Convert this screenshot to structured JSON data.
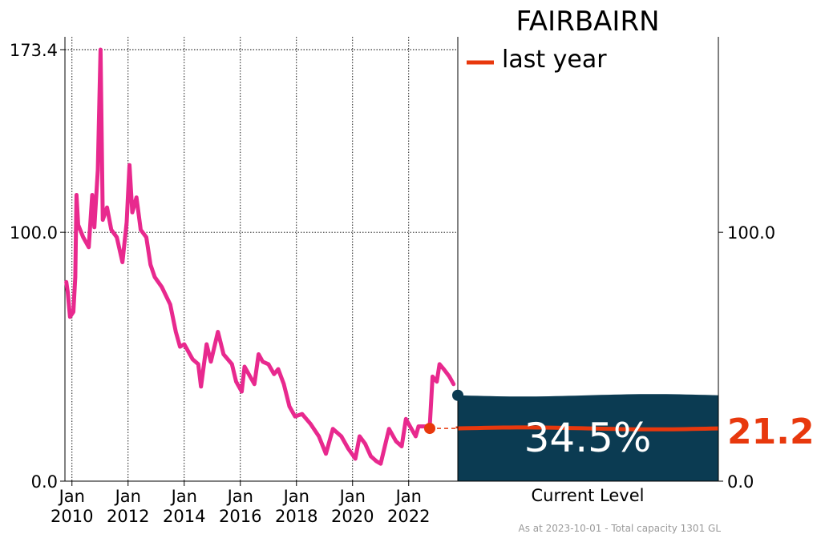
{
  "title": "FAIRBAIRN",
  "legend": {
    "label": "last year"
  },
  "current_panel": {
    "label": "Current Level",
    "percent_text": "34.5%"
  },
  "last_year_value_text": "21.2",
  "footer": "As at 2023-10-01 - Total capacity 1301 GL",
  "colors": {
    "series": "#e8298e",
    "last_year": "#e8380d",
    "fill": "#0b3b52",
    "dot": "#0b3b52"
  },
  "chart_data": {
    "type": "line",
    "title": "FAIRBAIRN",
    "xlabel": "",
    "ylabel": "",
    "ylim": [
      0,
      173.4
    ],
    "yticks_left": [
      "0.0",
      "100.0",
      "173.4"
    ],
    "yticks_right": [
      "0.0",
      "100.0"
    ],
    "xlim": [
      2009.75,
      2023.75
    ],
    "xticks": [
      {
        "x": 2010,
        "label1": "Jan",
        "label2": "2010"
      },
      {
        "x": 2012,
        "label1": "Jan",
        "label2": "2012"
      },
      {
        "x": 2014,
        "label1": "Jan",
        "label2": "2014"
      },
      {
        "x": 2016,
        "label1": "Jan",
        "label2": "2016"
      },
      {
        "x": 2018,
        "label1": "Jan",
        "label2": "2018"
      },
      {
        "x": 2020,
        "label1": "Jan",
        "label2": "2020"
      },
      {
        "x": 2022,
        "label1": "Jan",
        "label2": "2022"
      }
    ],
    "grid": true,
    "series": [
      {
        "values": [
          [
            2009.8,
            80
          ],
          [
            2009.85,
            76
          ],
          [
            2009.93,
            66
          ],
          [
            2010.05,
            68
          ],
          [
            2010.12,
            82
          ],
          [
            2010.16,
            115
          ],
          [
            2010.22,
            103
          ],
          [
            2010.4,
            98
          ],
          [
            2010.6,
            94
          ],
          [
            2010.72,
            115
          ],
          [
            2010.8,
            102
          ],
          [
            2010.92,
            125
          ],
          [
            2011.02,
            173.4
          ],
          [
            2011.1,
            105
          ],
          [
            2011.25,
            110
          ],
          [
            2011.4,
            101
          ],
          [
            2011.6,
            98
          ],
          [
            2011.8,
            88
          ],
          [
            2011.95,
            104
          ],
          [
            2012.05,
            127
          ],
          [
            2012.15,
            108
          ],
          [
            2012.3,
            114
          ],
          [
            2012.45,
            101
          ],
          [
            2012.65,
            98
          ],
          [
            2012.8,
            87
          ],
          [
            2012.95,
            82
          ],
          [
            2013.2,
            78
          ],
          [
            2013.5,
            71
          ],
          [
            2013.7,
            60
          ],
          [
            2013.85,
            54
          ],
          [
            2014.0,
            55
          ],
          [
            2014.3,
            49
          ],
          [
            2014.5,
            47
          ],
          [
            2014.6,
            38
          ],
          [
            2014.8,
            55
          ],
          [
            2014.95,
            48
          ],
          [
            2015.2,
            60
          ],
          [
            2015.4,
            51
          ],
          [
            2015.7,
            47
          ],
          [
            2015.85,
            40
          ],
          [
            2016.05,
            36
          ],
          [
            2016.15,
            46
          ],
          [
            2016.5,
            39
          ],
          [
            2016.65,
            51
          ],
          [
            2016.8,
            48
          ],
          [
            2017.0,
            47
          ],
          [
            2017.2,
            43
          ],
          [
            2017.35,
            45
          ],
          [
            2017.55,
            39
          ],
          [
            2017.75,
            30
          ],
          [
            2017.95,
            26
          ],
          [
            2018.2,
            27
          ],
          [
            2018.5,
            23
          ],
          [
            2018.8,
            18
          ],
          [
            2019.05,
            11
          ],
          [
            2019.3,
            21
          ],
          [
            2019.6,
            18
          ],
          [
            2019.85,
            13
          ],
          [
            2020.1,
            9
          ],
          [
            2020.25,
            18
          ],
          [
            2020.45,
            15
          ],
          [
            2020.65,
            10
          ],
          [
            2020.85,
            8
          ],
          [
            2021.0,
            7
          ],
          [
            2021.15,
            14
          ],
          [
            2021.3,
            21
          ],
          [
            2021.55,
            16
          ],
          [
            2021.75,
            14
          ],
          [
            2021.9,
            25
          ],
          [
            2022.1,
            21
          ],
          [
            2022.25,
            18
          ],
          [
            2022.35,
            22
          ],
          [
            2022.55,
            22
          ],
          [
            2022.75,
            22
          ],
          [
            2022.85,
            42
          ],
          [
            2023.0,
            40
          ],
          [
            2023.1,
            47
          ],
          [
            2023.25,
            45
          ],
          [
            2023.45,
            42
          ],
          [
            2023.6,
            39
          ]
        ]
      }
    ],
    "current_point": {
      "x": 2023.75,
      "y": 34.5
    },
    "last_year_point": {
      "x": 2022.75,
      "y": 21.2
    },
    "current_level_percent": 34.5,
    "last_year_percent": 21.2
  }
}
